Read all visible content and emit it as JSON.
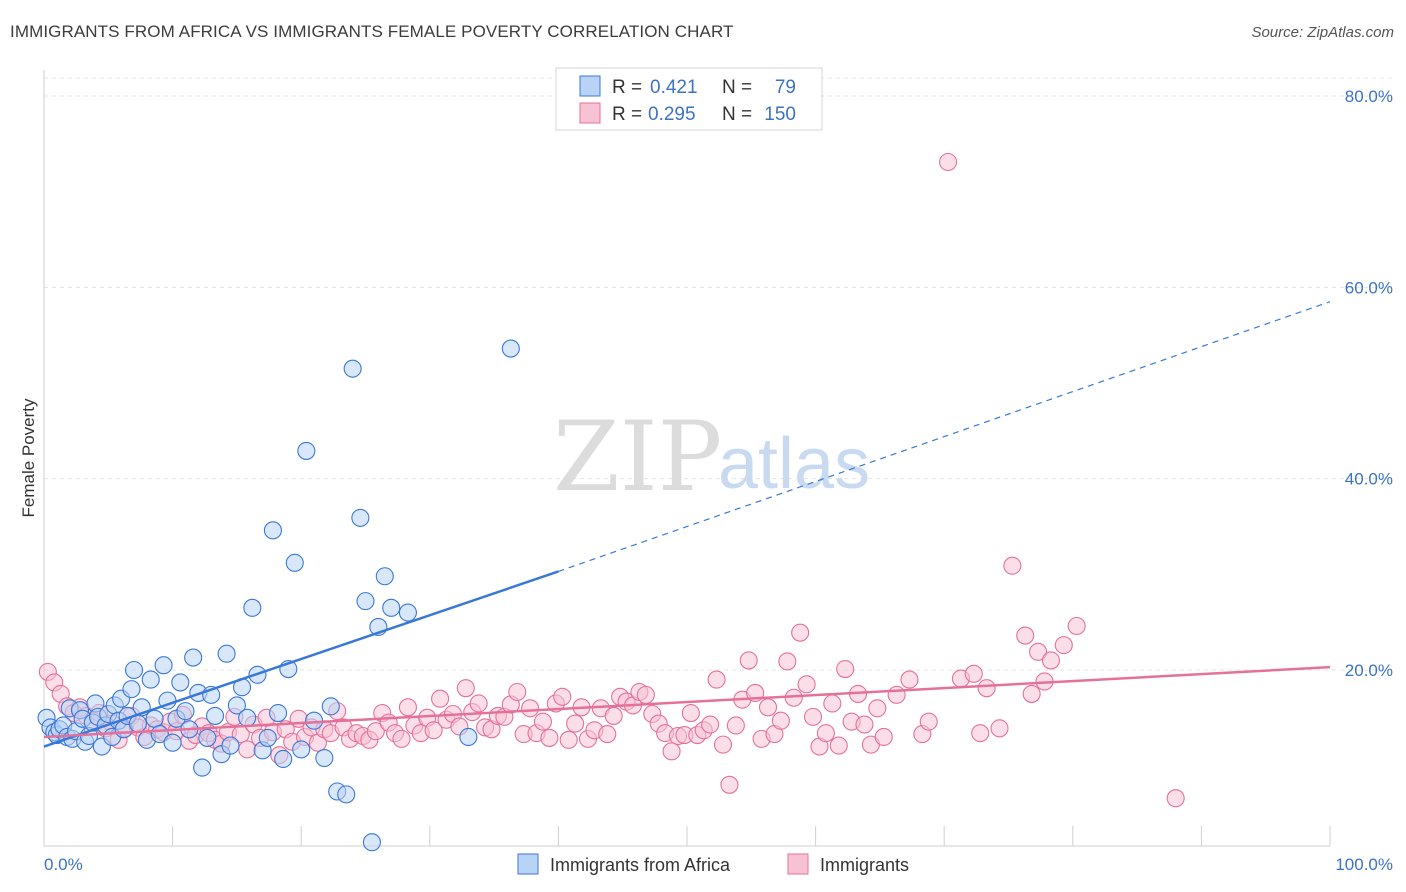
{
  "header": {
    "title": "IMMIGRANTS FROM AFRICA VS IMMIGRANTS FEMALE POVERTY CORRELATION CHART",
    "source": "Source: ZipAtlas.com"
  },
  "watermark": {
    "zip": "ZIP",
    "atlas": "atlas"
  },
  "colors": {
    "blue": "#3a78d8",
    "blue_fill": "#b9d3f6",
    "pink": "#e5719a",
    "pink_fill": "#f7c3d4",
    "tick": "#3b73c4"
  },
  "legend": {
    "rows": [
      {
        "r_label": "R = ",
        "r_value": "0.421",
        "n_label": "N = ",
        "n_value": " 79"
      },
      {
        "r_label": "R = ",
        "r_value": "0.295",
        "n_label": "N = ",
        "n_value": "150"
      }
    ]
  },
  "chart_data": {
    "type": "scatter",
    "title": "IMMIGRANTS FROM AFRICA VS IMMIGRANTS FEMALE POVERTY CORRELATION CHART",
    "xlabel": "",
    "ylabel": "Female Poverty",
    "xlim": [
      0,
      100
    ],
    "ylim": [
      0,
      82
    ],
    "x_tick_labels": [
      "0.0%",
      "100.0%"
    ],
    "y_ticks": [
      20,
      40,
      60,
      80
    ],
    "y_tick_labels": [
      "20.0%",
      "40.0%",
      "60.0%",
      "80.0%"
    ],
    "grid": true,
    "legend_position": "top-center",
    "series": [
      {
        "name": "Immigrants from Africa",
        "r": 0.421,
        "n": 79,
        "trend": {
          "x0": 0,
          "y0": 12.0,
          "x1": 40,
          "y1": 30.3,
          "x_dash_end": 100,
          "y_dash_end": 58.5
        },
        "points": [
          [
            0.2,
            15.0
          ],
          [
            0.5,
            14.0
          ],
          [
            0.8,
            13.5
          ],
          [
            1.0,
            13.2
          ],
          [
            1.2,
            13.8
          ],
          [
            1.5,
            14.2
          ],
          [
            1.8,
            13.0
          ],
          [
            2.0,
            16.0
          ],
          [
            2.2,
            12.8
          ],
          [
            2.5,
            13.6
          ],
          [
            2.8,
            15.8
          ],
          [
            3.0,
            14.9
          ],
          [
            3.2,
            12.5
          ],
          [
            3.5,
            13.1
          ],
          [
            3.8,
            14.5
          ],
          [
            4.0,
            16.5
          ],
          [
            4.2,
            15.1
          ],
          [
            4.5,
            12.0
          ],
          [
            4.8,
            14.2
          ],
          [
            5.0,
            15.4
          ],
          [
            5.3,
            13.0
          ],
          [
            5.5,
            16.3
          ],
          [
            5.8,
            14.7
          ],
          [
            6.0,
            17.0
          ],
          [
            6.2,
            13.8
          ],
          [
            6.5,
            15.2
          ],
          [
            6.8,
            18.0
          ],
          [
            7.0,
            20.0
          ],
          [
            7.3,
            14.4
          ],
          [
            7.6,
            16.1
          ],
          [
            8.0,
            12.7
          ],
          [
            8.3,
            19.0
          ],
          [
            8.6,
            14.9
          ],
          [
            9.0,
            13.3
          ],
          [
            9.3,
            20.5
          ],
          [
            9.6,
            16.8
          ],
          [
            10.0,
            12.4
          ],
          [
            10.3,
            14.9
          ],
          [
            10.6,
            18.7
          ],
          [
            11.0,
            15.7
          ],
          [
            11.3,
            13.8
          ],
          [
            11.6,
            21.3
          ],
          [
            12.0,
            17.6
          ],
          [
            12.3,
            9.8
          ],
          [
            12.7,
            12.9
          ],
          [
            13.0,
            17.4
          ],
          [
            13.3,
            15.2
          ],
          [
            13.8,
            11.2
          ],
          [
            14.2,
            21.7
          ],
          [
            14.5,
            12.1
          ],
          [
            15.0,
            16.3
          ],
          [
            15.4,
            18.2
          ],
          [
            15.8,
            15.0
          ],
          [
            16.2,
            26.5
          ],
          [
            16.6,
            19.5
          ],
          [
            17.0,
            11.6
          ],
          [
            17.4,
            12.9
          ],
          [
            17.8,
            34.6
          ],
          [
            18.2,
            15.5
          ],
          [
            18.6,
            10.7
          ],
          [
            19.0,
            20.1
          ],
          [
            19.5,
            31.2
          ],
          [
            20.0,
            11.7
          ],
          [
            20.4,
            42.9
          ],
          [
            21.0,
            14.7
          ],
          [
            21.8,
            10.8
          ],
          [
            22.3,
            16.2
          ],
          [
            22.8,
            7.3
          ],
          [
            23.5,
            7.0
          ],
          [
            24.0,
            51.5
          ],
          [
            25.0,
            27.2
          ],
          [
            26.0,
            24.5
          ],
          [
            26.5,
            29.8
          ],
          [
            27.0,
            26.5
          ],
          [
            24.6,
            35.9
          ],
          [
            25.5,
            2.0
          ],
          [
            28.3,
            26.0
          ],
          [
            33.0,
            13.0
          ],
          [
            36.3,
            53.6
          ]
        ]
      },
      {
        "name": "Immigrants",
        "r": 0.295,
        "n": 150,
        "trend": {
          "x0": 0,
          "y0": 13.0,
          "x1": 100,
          "y1": 20.3
        },
        "points": [
          [
            0.3,
            19.8
          ],
          [
            0.8,
            18.7
          ],
          [
            1.3,
            17.5
          ],
          [
            1.8,
            16.2
          ],
          [
            2.3,
            15.5
          ],
          [
            2.8,
            16.1
          ],
          [
            3.3,
            15.2
          ],
          [
            3.8,
            14.7
          ],
          [
            4.3,
            15.5
          ],
          [
            4.8,
            13.9
          ],
          [
            5.3,
            14.4
          ],
          [
            5.8,
            12.7
          ],
          [
            6.3,
            13.9
          ],
          [
            6.8,
            15.2
          ],
          [
            7.3,
            14.0
          ],
          [
            7.8,
            13.0
          ],
          [
            8.3,
            14.2
          ],
          [
            8.8,
            13.8
          ],
          [
            9.3,
            13.5
          ],
          [
            9.8,
            14.6
          ],
          [
            10.3,
            13.6
          ],
          [
            10.8,
            15.3
          ],
          [
            11.3,
            12.6
          ],
          [
            11.8,
            13.2
          ],
          [
            12.3,
            14.1
          ],
          [
            12.8,
            13.4
          ],
          [
            13.3,
            12.7
          ],
          [
            13.8,
            12.3
          ],
          [
            14.3,
            13.5
          ],
          [
            14.8,
            15.1
          ],
          [
            15.3,
            13.3
          ],
          [
            15.8,
            11.7
          ],
          [
            16.3,
            14.3
          ],
          [
            16.8,
            12.9
          ],
          [
            17.3,
            15.0
          ],
          [
            17.8,
            13.5
          ],
          [
            18.3,
            11.1
          ],
          [
            18.8,
            13.8
          ],
          [
            19.3,
            12.5
          ],
          [
            19.8,
            14.9
          ],
          [
            20.3,
            13.0
          ],
          [
            20.8,
            14.0
          ],
          [
            21.3,
            12.4
          ],
          [
            21.8,
            13.8
          ],
          [
            22.3,
            13.4
          ],
          [
            22.8,
            15.7
          ],
          [
            23.3,
            14.0
          ],
          [
            23.8,
            12.8
          ],
          [
            24.3,
            13.4
          ],
          [
            24.8,
            13.1
          ],
          [
            25.3,
            12.7
          ],
          [
            25.8,
            13.6
          ],
          [
            26.3,
            15.5
          ],
          [
            26.8,
            14.5
          ],
          [
            27.3,
            13.4
          ],
          [
            27.8,
            12.8
          ],
          [
            28.3,
            16.1
          ],
          [
            28.8,
            14.2
          ],
          [
            29.3,
            13.4
          ],
          [
            29.8,
            15.0
          ],
          [
            30.3,
            13.7
          ],
          [
            30.8,
            17.0
          ],
          [
            31.3,
            14.8
          ],
          [
            31.8,
            15.4
          ],
          [
            32.3,
            14.1
          ],
          [
            32.8,
            18.1
          ],
          [
            33.3,
            15.6
          ],
          [
            33.8,
            16.5
          ],
          [
            34.3,
            14.0
          ],
          [
            34.8,
            13.8
          ],
          [
            35.3,
            15.2
          ],
          [
            35.8,
            15.1
          ],
          [
            36.3,
            16.4
          ],
          [
            36.8,
            17.7
          ],
          [
            37.3,
            13.3
          ],
          [
            37.8,
            16.0
          ],
          [
            38.3,
            13.4
          ],
          [
            38.8,
            14.6
          ],
          [
            39.3,
            12.9
          ],
          [
            39.8,
            16.5
          ],
          [
            40.3,
            17.2
          ],
          [
            40.8,
            12.7
          ],
          [
            41.3,
            14.4
          ],
          [
            41.8,
            16.1
          ],
          [
            42.3,
            12.8
          ],
          [
            42.8,
            13.7
          ],
          [
            43.3,
            16.0
          ],
          [
            43.8,
            13.3
          ],
          [
            44.3,
            15.2
          ],
          [
            44.8,
            17.2
          ],
          [
            45.3,
            16.7
          ],
          [
            45.8,
            16.3
          ],
          [
            46.3,
            17.7
          ],
          [
            46.8,
            17.4
          ],
          [
            47.3,
            15.4
          ],
          [
            47.8,
            14.4
          ],
          [
            48.3,
            13.4
          ],
          [
            48.8,
            11.5
          ],
          [
            49.3,
            13.1
          ],
          [
            49.8,
            13.2
          ],
          [
            50.3,
            15.5
          ],
          [
            50.8,
            13.2
          ],
          [
            51.3,
            13.7
          ],
          [
            51.8,
            14.3
          ],
          [
            52.3,
            19.0
          ],
          [
            52.8,
            12.2
          ],
          [
            53.3,
            8.0
          ],
          [
            53.8,
            14.2
          ],
          [
            54.3,
            16.9
          ],
          [
            54.8,
            21.0
          ],
          [
            55.3,
            17.6
          ],
          [
            55.8,
            12.8
          ],
          [
            56.3,
            16.1
          ],
          [
            56.8,
            13.3
          ],
          [
            57.3,
            14.7
          ],
          [
            57.8,
            20.9
          ],
          [
            58.3,
            17.1
          ],
          [
            58.8,
            23.9
          ],
          [
            59.3,
            18.5
          ],
          [
            59.8,
            15.1
          ],
          [
            60.3,
            12.0
          ],
          [
            60.8,
            13.4
          ],
          [
            61.3,
            16.5
          ],
          [
            61.8,
            12.1
          ],
          [
            62.3,
            20.1
          ],
          [
            62.8,
            14.6
          ],
          [
            63.3,
            17.5
          ],
          [
            63.8,
            14.3
          ],
          [
            64.3,
            12.2
          ],
          [
            64.8,
            16.0
          ],
          [
            65.3,
            13.0
          ],
          [
            66.3,
            17.4
          ],
          [
            67.3,
            19.0
          ],
          [
            68.3,
            13.3
          ],
          [
            68.8,
            14.6
          ],
          [
            70.3,
            73.1
          ],
          [
            71.3,
            19.1
          ],
          [
            72.3,
            19.6
          ],
          [
            73.3,
            18.1
          ],
          [
            75.3,
            30.9
          ],
          [
            76.3,
            23.6
          ],
          [
            77.3,
            21.9
          ],
          [
            78.3,
            21.0
          ],
          [
            79.3,
            22.6
          ],
          [
            80.3,
            24.6
          ],
          [
            74.3,
            13.9
          ],
          [
            72.8,
            13.4
          ],
          [
            76.8,
            17.5
          ],
          [
            77.8,
            18.8
          ],
          [
            88.0,
            6.6
          ]
        ]
      }
    ]
  },
  "bottom_legend": {
    "items": [
      "Immigrants from Africa",
      "Immigrants"
    ]
  }
}
